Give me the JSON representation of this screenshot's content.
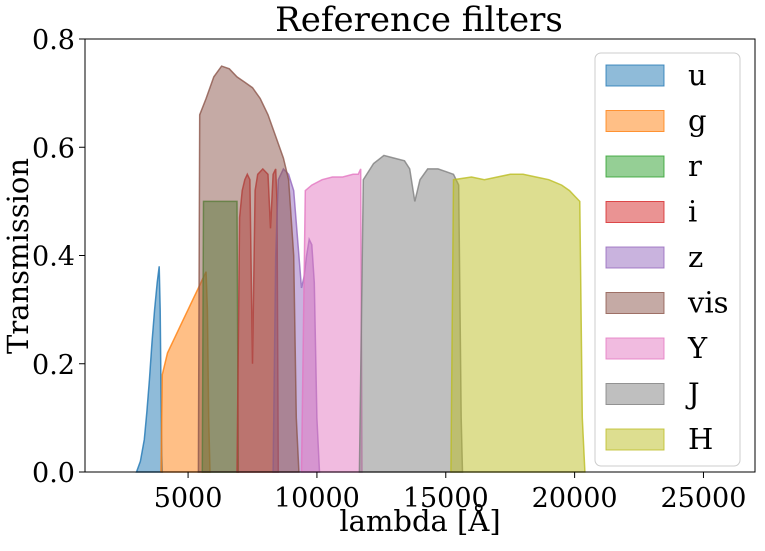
{
  "chart_data": {
    "type": "area",
    "title": "Reference filters",
    "xlabel": "lambda [Å]",
    "ylabel": "Transmission",
    "xlim": [
      1000,
      27000
    ],
    "ylim": [
      0,
      0.8
    ],
    "xticks": [
      5000,
      10000,
      15000,
      20000,
      25000
    ],
    "yticks": [
      0.0,
      0.2,
      0.4,
      0.6,
      0.8
    ],
    "xtick_labels": [
      "5000",
      "10000",
      "15000",
      "20000",
      "25000"
    ],
    "ytick_labels": [
      "0.0",
      "0.2",
      "0.4",
      "0.6",
      "0.8"
    ],
    "grid": false,
    "legend_position": "right",
    "series": [
      {
        "name": "u",
        "color": "#1f77b4",
        "points": [
          [
            3000,
            0.0
          ],
          [
            3150,
            0.02
          ],
          [
            3300,
            0.06
          ],
          [
            3400,
            0.11
          ],
          [
            3500,
            0.17
          ],
          [
            3600,
            0.24
          ],
          [
            3700,
            0.3
          ],
          [
            3800,
            0.35
          ],
          [
            3880,
            0.38
          ],
          [
            3920,
            0.3
          ],
          [
            3950,
            0.15
          ],
          [
            3980,
            0.03
          ],
          [
            4000,
            0.0
          ]
        ]
      },
      {
        "name": "g",
        "color": "#ff7f0e",
        "points": [
          [
            3950,
            0.0
          ],
          [
            4000,
            0.18
          ],
          [
            4200,
            0.22
          ],
          [
            4500,
            0.25
          ],
          [
            4800,
            0.28
          ],
          [
            5000,
            0.3
          ],
          [
            5200,
            0.32
          ],
          [
            5400,
            0.34
          ],
          [
            5600,
            0.36
          ],
          [
            5700,
            0.37
          ],
          [
            5750,
            0.3
          ],
          [
            5800,
            0.1
          ],
          [
            5850,
            0.0
          ]
        ]
      },
      {
        "name": "r",
        "color": "#2ca02c",
        "points": [
          [
            5550,
            0.0
          ],
          [
            5600,
            0.5
          ],
          [
            6900,
            0.5
          ],
          [
            6950,
            0.0
          ]
        ]
      },
      {
        "name": "i",
        "color": "#d62728",
        "points": [
          [
            6900,
            0.0
          ],
          [
            7000,
            0.47
          ],
          [
            7100,
            0.52
          ],
          [
            7200,
            0.54
          ],
          [
            7300,
            0.55
          ],
          [
            7400,
            0.54
          ],
          [
            7500,
            0.2
          ],
          [
            7600,
            0.52
          ],
          [
            7700,
            0.55
          ],
          [
            7900,
            0.56
          ],
          [
            8100,
            0.55
          ],
          [
            8200,
            0.45
          ],
          [
            8300,
            0.55
          ],
          [
            8400,
            0.56
          ],
          [
            8450,
            0.5
          ],
          [
            8500,
            0.0
          ]
        ]
      },
      {
        "name": "z",
        "color": "#9467bd",
        "points": [
          [
            8300,
            0.0
          ],
          [
            8400,
            0.4
          ],
          [
            8500,
            0.54
          ],
          [
            8700,
            0.56
          ],
          [
            8900,
            0.55
          ],
          [
            9100,
            0.52
          ],
          [
            9300,
            0.4
          ],
          [
            9400,
            0.34
          ],
          [
            9500,
            0.36
          ],
          [
            9600,
            0.4
          ],
          [
            9700,
            0.43
          ],
          [
            9800,
            0.42
          ],
          [
            9900,
            0.35
          ],
          [
            10000,
            0.1
          ],
          [
            10100,
            0.0
          ]
        ]
      },
      {
        "name": "vis",
        "color": "#8c564b",
        "points": [
          [
            5400,
            0.0
          ],
          [
            5450,
            0.66
          ],
          [
            5700,
            0.69
          ],
          [
            6000,
            0.73
          ],
          [
            6300,
            0.75
          ],
          [
            6600,
            0.745
          ],
          [
            6900,
            0.73
          ],
          [
            7200,
            0.72
          ],
          [
            7500,
            0.71
          ],
          [
            7800,
            0.69
          ],
          [
            8100,
            0.66
          ],
          [
            8400,
            0.62
          ],
          [
            8700,
            0.58
          ],
          [
            8900,
            0.54
          ],
          [
            9100,
            0.4
          ],
          [
            9200,
            0.1
          ],
          [
            9300,
            0.0
          ]
        ]
      },
      {
        "name": "Y",
        "color": "#e377c2",
        "points": [
          [
            9400,
            0.0
          ],
          [
            9550,
            0.52
          ],
          [
            9800,
            0.53
          ],
          [
            10200,
            0.54
          ],
          [
            10600,
            0.545
          ],
          [
            11000,
            0.545
          ],
          [
            11400,
            0.55
          ],
          [
            11600,
            0.55
          ],
          [
            11700,
            0.56
          ],
          [
            11750,
            0.0
          ]
        ]
      },
      {
        "name": "J",
        "color": "#7f7f7f",
        "points": [
          [
            11650,
            0.0
          ],
          [
            11800,
            0.54
          ],
          [
            12200,
            0.57
          ],
          [
            12600,
            0.585
          ],
          [
            13000,
            0.58
          ],
          [
            13400,
            0.575
          ],
          [
            13600,
            0.56
          ],
          [
            13800,
            0.5
          ],
          [
            14000,
            0.54
          ],
          [
            14300,
            0.56
          ],
          [
            14700,
            0.56
          ],
          [
            15000,
            0.555
          ],
          [
            15300,
            0.55
          ],
          [
            15500,
            0.53
          ],
          [
            15600,
            0.1
          ],
          [
            15650,
            0.0
          ]
        ]
      },
      {
        "name": "H",
        "color": "#bcbd22",
        "points": [
          [
            15200,
            0.0
          ],
          [
            15300,
            0.54
          ],
          [
            16000,
            0.545
          ],
          [
            16500,
            0.54
          ],
          [
            17000,
            0.545
          ],
          [
            17500,
            0.55
          ],
          [
            18000,
            0.55
          ],
          [
            18500,
            0.545
          ],
          [
            19000,
            0.54
          ],
          [
            19500,
            0.53
          ],
          [
            19800,
            0.52
          ],
          [
            20000,
            0.51
          ],
          [
            20200,
            0.5
          ],
          [
            20300,
            0.1
          ],
          [
            20400,
            0.0
          ]
        ]
      }
    ]
  }
}
